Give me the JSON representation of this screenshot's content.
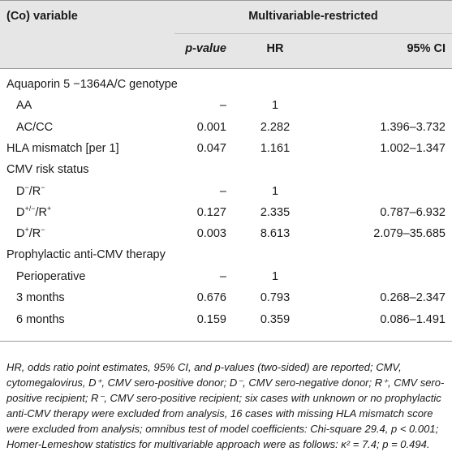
{
  "header": {
    "variable": "(Co) variable",
    "group": "Multivariable-restricted",
    "p_value": "p-value",
    "hr": "HR",
    "ci": "95% CI"
  },
  "rows": [
    {
      "label": "Aquaporin 5 −1364A/C genotype",
      "p": "",
      "hr": "",
      "ci": ""
    },
    {
      "label": "AA",
      "p": "–",
      "hr": "1",
      "ci": ""
    },
    {
      "label": "AC/CC",
      "p": "0.001",
      "hr": "2.282",
      "ci": "1.396–3.732"
    },
    {
      "label": "HLA mismatch [per 1]",
      "p": "0.047",
      "hr": "1.161",
      "ci": "1.002–1.347"
    },
    {
      "label": "CMV risk status",
      "p": "",
      "hr": "",
      "ci": ""
    },
    {
      "label_base": "D",
      "label_sup1": "−",
      "label_mid": "/R",
      "label_sup2": "−",
      "p": "–",
      "hr": "1",
      "ci": ""
    },
    {
      "label_base": "D",
      "label_sup1": "+/−",
      "label_mid": "/R",
      "label_sup2": "+",
      "p": "0.127",
      "hr": "2.335",
      "ci": "0.787–6.932"
    },
    {
      "label_base": "D",
      "label_sup1": "+",
      "label_mid": "/R",
      "label_sup2": "−",
      "p": "0.003",
      "hr": "8.613",
      "ci": "2.079–35.685"
    },
    {
      "label": "Prophylactic anti-CMV therapy",
      "p": "",
      "hr": "",
      "ci": ""
    },
    {
      "label": "Perioperative",
      "p": "–",
      "hr": "1",
      "ci": ""
    },
    {
      "label": "3 months",
      "p": "0.676",
      "hr": "0.793",
      "ci": "0.268–2.347"
    },
    {
      "label": "6 months",
      "p": "0.159",
      "hr": "0.359",
      "ci": "0.086–1.491"
    }
  ],
  "footnote": "HR, odds ratio point estimates, 95% CI, and p-values (two-sided) are reported; CMV, cytomegalovirus, D⁺, CMV sero-positive donor; D⁻, CMV sero-negative donor; R⁺, CMV sero-positive recipient; R⁻, CMV sero-positive recipient; six cases with unknown or no prophylactic anti-CMV therapy were excluded from analysis, 16 cases with missing HLA mismatch score were excluded from analysis; omnibus test of model coefficients: Chi-square 29.4, p < 0.001; Homer-Lemeshow statistics for multivariable approach were as follows: κ² = 7.4; p = 0.494."
}
